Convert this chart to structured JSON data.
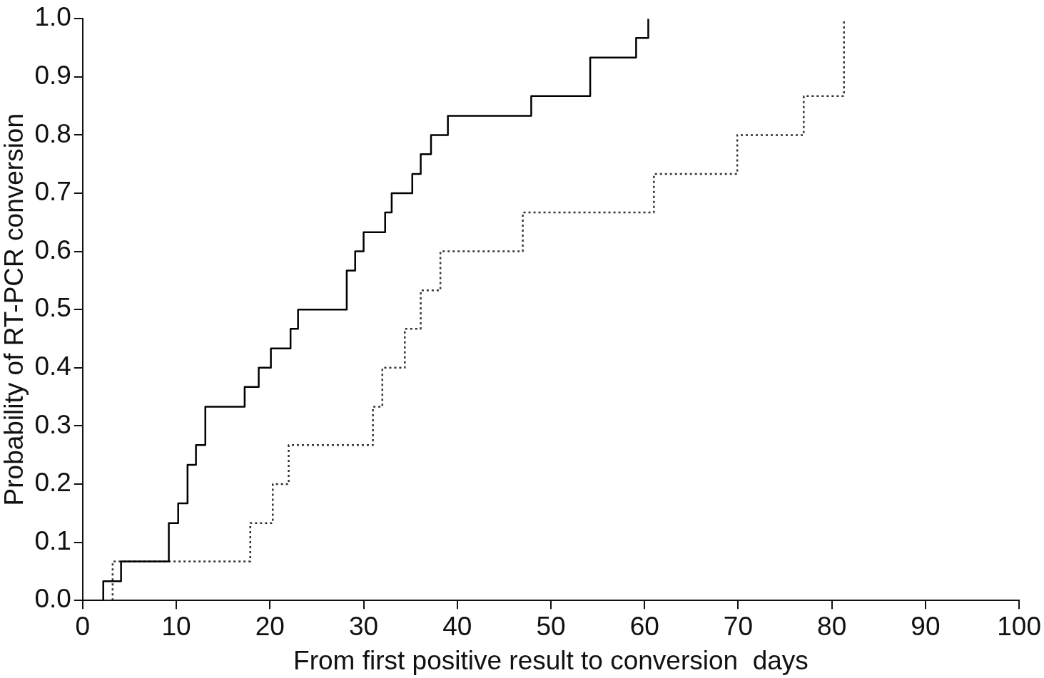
{
  "chart_data": {
    "type": "step",
    "xlabel": "From first positive result to conversion  days",
    "ylabel": "Probability of RT-PCR conversion",
    "xlim": [
      0,
      100
    ],
    "xticks": [
      0,
      10,
      20,
      30,
      40,
      50,
      60,
      70,
      80,
      90,
      100
    ],
    "ylim": [
      0,
      1
    ],
    "yticks": [
      {
        "value": 0,
        "label": "0.0"
      },
      0.1,
      0.2,
      0.3,
      0.4,
      0.5,
      0.6,
      0.7,
      0.8,
      0.9,
      {
        "value": 1,
        "label": "1.0"
      }
    ],
    "grid": false,
    "legend": false,
    "series": [
      {
        "color": "#000000",
        "line_style": "solid",
        "x": [
          0,
          2.2,
          4.1,
          9.2,
          10.2,
          11.2,
          12.1,
          13.1,
          17.3,
          18.8,
          20.1,
          22.2,
          23,
          28.2,
          29.1,
          30,
          32.3,
          33,
          35.2,
          36.1,
          37.2,
          39,
          47.9,
          54.2,
          59.1,
          60.4
        ],
        "values": [
          0,
          0.033,
          0.067,
          0.133,
          0.167,
          0.233,
          0.267,
          0.333,
          0.367,
          0.4,
          0.433,
          0.467,
          0.5,
          0.567,
          0.6,
          0.633,
          0.667,
          0.7,
          0.733,
          0.767,
          0.8,
          0.833,
          0.867,
          0.933,
          0.967,
          1
        ]
      },
      {
        "color": "#333333",
        "line_style": "dotted",
        "x": [
          0,
          3.2,
          17.9,
          20.3,
          22,
          31,
          32,
          34.4,
          36.1,
          38.2,
          47,
          61,
          69.9,
          77,
          81.3
        ],
        "values": [
          0,
          0.067,
          0.133,
          0.2,
          0.267,
          0.333,
          0.4,
          0.467,
          0.533,
          0.6,
          0.667,
          0.733,
          0.8,
          0.867,
          1
        ]
      }
    ]
  }
}
